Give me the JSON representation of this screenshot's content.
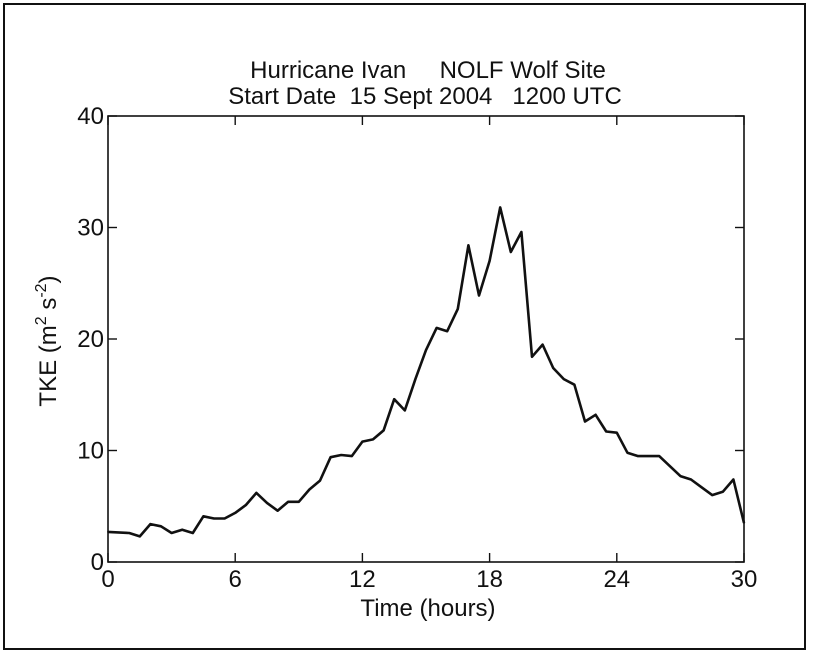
{
  "chart_data": {
    "type": "line",
    "title": "Hurricane Ivan     NOLF Wolf Site",
    "subtitle": "Start Date  15 Sept 2004   1200 UTC",
    "xlabel": "Time (hours)",
    "ylabel": {
      "base": "TKE (m",
      "exp1": "2",
      "mid": " s",
      "exp2": "-2",
      "end": ")"
    },
    "xlim": [
      0,
      30
    ],
    "ylim": [
      0,
      40
    ],
    "xticks": [
      0,
      6,
      12,
      18,
      24,
      30
    ],
    "yticks": [
      0,
      10,
      20,
      30,
      40
    ],
    "xtick_labels": [
      "0",
      "6",
      "12",
      "18",
      "24",
      "30"
    ],
    "ytick_labels": [
      "0",
      "10",
      "20",
      "30",
      "40"
    ],
    "grid": false,
    "series": [
      {
        "line_color": "#111111",
        "x": [
          0,
          1,
          1.5,
          2,
          2.5,
          3,
          3.5,
          4,
          4.5,
          5,
          5.5,
          6,
          6.5,
          7,
          7.5,
          8,
          8.5,
          9,
          9.5,
          10,
          10.5,
          11,
          11.5,
          12,
          12.5,
          13,
          13.5,
          14,
          14.5,
          15,
          15.5,
          16,
          16.5,
          17,
          17.5,
          18,
          18.5,
          19,
          19.5,
          20,
          20.5,
          21,
          21.5,
          22,
          22.5,
          23,
          23.5,
          24,
          24.5,
          25,
          25.5,
          26,
          26.5,
          27,
          27.5,
          28,
          28.5,
          29,
          29.5,
          30
        ],
        "y": [
          2.7,
          2.6,
          2.3,
          3.4,
          3.2,
          2.6,
          2.9,
          2.6,
          4.1,
          3.9,
          3.9,
          4.4,
          5.1,
          6.2,
          5.3,
          4.6,
          5.4,
          5.4,
          6.5,
          7.3,
          9.4,
          9.6,
          9.5,
          10.8,
          11.0,
          11.8,
          14.6,
          13.6,
          16.4,
          19.0,
          21.0,
          20.7,
          22.7,
          28.4,
          23.9,
          27.0,
          31.8,
          27.8,
          29.6,
          18.4,
          19.5,
          17.4,
          16.4,
          15.9,
          12.6,
          13.2,
          11.7,
          11.6,
          9.8,
          9.5,
          9.5,
          9.5,
          8.6,
          7.7,
          7.4,
          6.7,
          6.0,
          6.3,
          7.4,
          3.5
        ]
      }
    ]
  }
}
